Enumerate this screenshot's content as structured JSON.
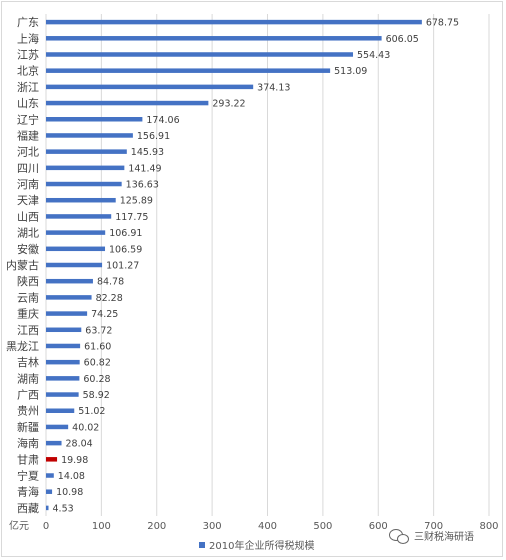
{
  "chart_data": {
    "type": "bar",
    "orientation": "horizontal",
    "categories": [
      "广东",
      "上海",
      "江苏",
      "北京",
      "浙江",
      "山东",
      "辽宁",
      "福建",
      "河北",
      "四川",
      "河南",
      "天津",
      "山西",
      "湖北",
      "安徽",
      "内蒙古",
      "陕西",
      "云南",
      "重庆",
      "江西",
      "黑龙江",
      "吉林",
      "湖南",
      "广西",
      "贵州",
      "新疆",
      "海南",
      "甘肃",
      "宁夏",
      "青海",
      "西藏"
    ],
    "series": [
      {
        "name": "2010年企业所得税规模",
        "values": [
          678.75,
          606.05,
          554.43,
          513.09,
          374.13,
          293.22,
          174.06,
          156.91,
          145.93,
          141.49,
          136.63,
          125.89,
          117.75,
          106.91,
          106.59,
          101.27,
          84.78,
          82.28,
          74.25,
          63.72,
          61.6,
          60.82,
          60.28,
          58.92,
          51.02,
          40.02,
          28.04,
          19.98,
          14.08,
          10.98,
          4.53
        ],
        "value_labels": [
          "678.75",
          "606.05",
          "554.43",
          "513.09",
          "374.13",
          "293.22",
          "174.06",
          "156.91",
          "145.93",
          "141.49",
          "136.63",
          "125.89",
          "117.75",
          "106.91",
          "106.59",
          "101.27",
          "84.78",
          "82.28",
          "74.25",
          "63.72",
          "61.60",
          "60.82",
          "60.28",
          "58.92",
          "51.02",
          "40.02",
          "28.04",
          "19.98",
          "14.08",
          "10.98",
          "4.53"
        ]
      }
    ],
    "xlim": [
      0,
      800
    ],
    "x_ticks": [
      "0",
      "100",
      "200",
      "300",
      "400",
      "500",
      "600",
      "700",
      "800"
    ],
    "x_unit": "亿元",
    "grid": "vertical",
    "legend": "bottom",
    "highlight_category": "甘肃"
  },
  "colors": {
    "bar": "#4472c4",
    "highlight_bar": "#c00000",
    "highlight_label": "#c00000",
    "grid": "#d9d9d9",
    "text": "#404040"
  },
  "watermark": {
    "icon": "wechat-icon",
    "text": "三财税海研语"
  }
}
